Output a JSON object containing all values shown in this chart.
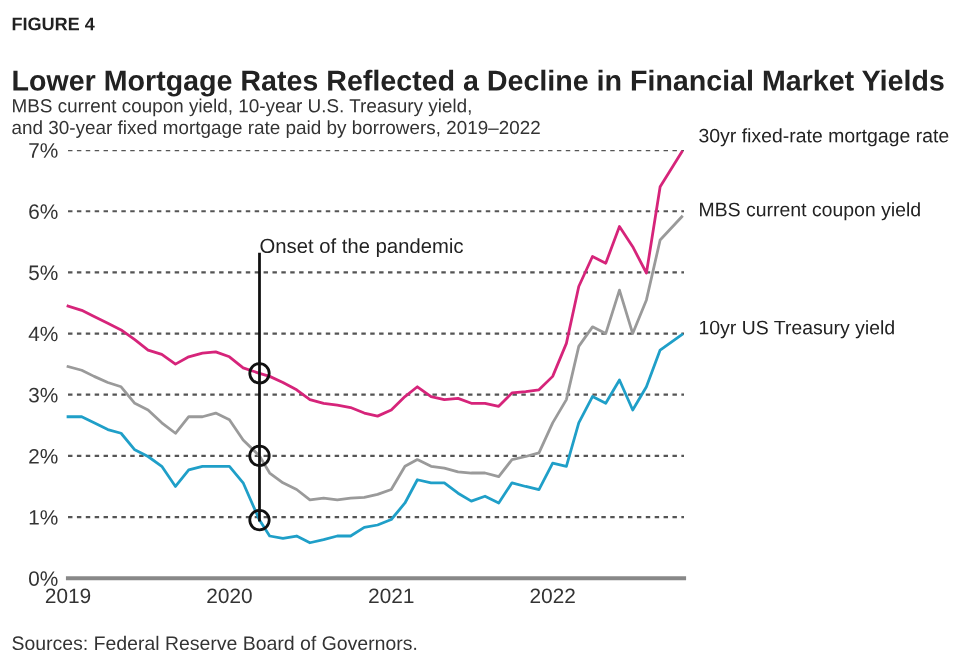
{
  "chart_data": {
    "type": "line",
    "title": "Lower Mortgage Rates Reflected a Decline in Financial Market Yields",
    "subtitle": "MBS current coupon yield, 10-year U.S. Treasury yield,\nand 30-year fixed mortgage rate paid by borrowers, 2019–2022",
    "x": [
      "2019-01-01",
      "2019-02-01",
      "2019-03-01",
      "2019-04-01",
      "2019-05-01",
      "2019-06-01",
      "2019-07-01",
      "2019-08-01",
      "2019-09-01",
      "2019-10-01",
      "2019-11-01",
      "2019-12-01",
      "2020-01-01",
      "2020-02-01",
      "2020-03-09",
      "2020-04-01",
      "2020-05-01",
      "2020-06-01",
      "2020-07-01",
      "2020-08-01",
      "2020-09-01",
      "2020-10-01",
      "2020-11-01",
      "2020-12-01",
      "2021-01-01",
      "2021-02-01",
      "2021-03-01",
      "2021-04-01",
      "2021-05-01",
      "2021-06-01",
      "2021-07-01",
      "2021-08-01",
      "2021-09-01",
      "2021-10-01",
      "2021-11-01",
      "2021-12-01",
      "2022-01-01",
      "2022-02-01",
      "2022-03-01",
      "2022-04-01",
      "2022-05-01",
      "2022-06-01",
      "2022-07-01",
      "2022-08-01",
      "2022-09-01",
      "2022-10-20"
    ],
    "series": [
      {
        "name": "30yr fixed-rate mortgage rate",
        "color": "#d6247a",
        "values": [
          4.45,
          4.38,
          4.28,
          4.17,
          4.06,
          3.9,
          3.73,
          3.66,
          3.5,
          3.62,
          3.68,
          3.7,
          3.62,
          3.44,
          3.35,
          3.3,
          3.2,
          3.08,
          2.92,
          2.86,
          2.83,
          2.79,
          2.7,
          2.65,
          2.75,
          2.97,
          3.13,
          2.97,
          2.92,
          2.94,
          2.86,
          2.86,
          2.81,
          3.03,
          3.05,
          3.08,
          3.3,
          3.84,
          4.77,
          5.26,
          5.15,
          5.75,
          5.42,
          4.99,
          6.4,
          6.97
        ]
      },
      {
        "name": "MBS current coupon yield",
        "color": "#9a9a9a",
        "values": [
          3.46,
          3.4,
          3.3,
          3.2,
          3.13,
          2.86,
          2.75,
          2.54,
          2.37,
          2.64,
          2.64,
          2.7,
          2.59,
          2.26,
          2.0,
          1.72,
          1.56,
          1.45,
          1.28,
          1.31,
          1.28,
          1.31,
          1.32,
          1.37,
          1.45,
          1.83,
          1.94,
          1.83,
          1.8,
          1.74,
          1.72,
          1.72,
          1.66,
          1.94,
          1.99,
          2.05,
          2.54,
          2.92,
          3.79,
          4.11,
          4.0,
          4.71,
          4.0,
          4.55,
          5.53,
          5.91
        ]
      },
      {
        "name": "10yr US Treasury yield",
        "color": "#1f9fc8",
        "values": [
          2.64,
          2.64,
          2.54,
          2.43,
          2.37,
          2.1,
          1.99,
          1.83,
          1.5,
          1.77,
          1.83,
          1.83,
          1.83,
          1.56,
          0.95,
          0.69,
          0.65,
          0.69,
          0.58,
          0.63,
          0.69,
          0.69,
          0.83,
          0.87,
          0.96,
          1.23,
          1.61,
          1.56,
          1.56,
          1.39,
          1.26,
          1.34,
          1.23,
          1.56,
          1.5,
          1.45,
          1.88,
          1.83,
          2.54,
          2.97,
          2.86,
          3.24,
          2.75,
          3.13,
          3.73,
          3.98
        ]
      }
    ],
    "xlim": [
      "2019-01-01",
      "2022-10-25"
    ],
    "xticks": [
      {
        "value": "2019-01-01",
        "label": "2019"
      },
      {
        "value": "2020-01-01",
        "label": "2020"
      },
      {
        "value": "2021-01-01",
        "label": "2021"
      },
      {
        "value": "2022-01-01",
        "label": "2022"
      }
    ],
    "ylim": [
      0,
      7
    ],
    "yticks": [
      {
        "value": 0,
        "label": "0%"
      },
      {
        "value": 1,
        "label": "1%"
      },
      {
        "value": 2,
        "label": "2%"
      },
      {
        "value": 3,
        "label": "3%"
      },
      {
        "value": 4,
        "label": "4%"
      },
      {
        "value": 5,
        "label": "5%"
      },
      {
        "value": 6,
        "label": "6%"
      },
      {
        "value": 7,
        "label": "7%"
      }
    ],
    "grid": "y",
    "ref_lines": [
      {
        "axis": "x",
        "value": "2020-03-09",
        "label": "Onset of the pandemic"
      }
    ],
    "annotations": [
      "FIGURE 4",
      "Sources: Federal Reserve Board of Governors."
    ]
  }
}
